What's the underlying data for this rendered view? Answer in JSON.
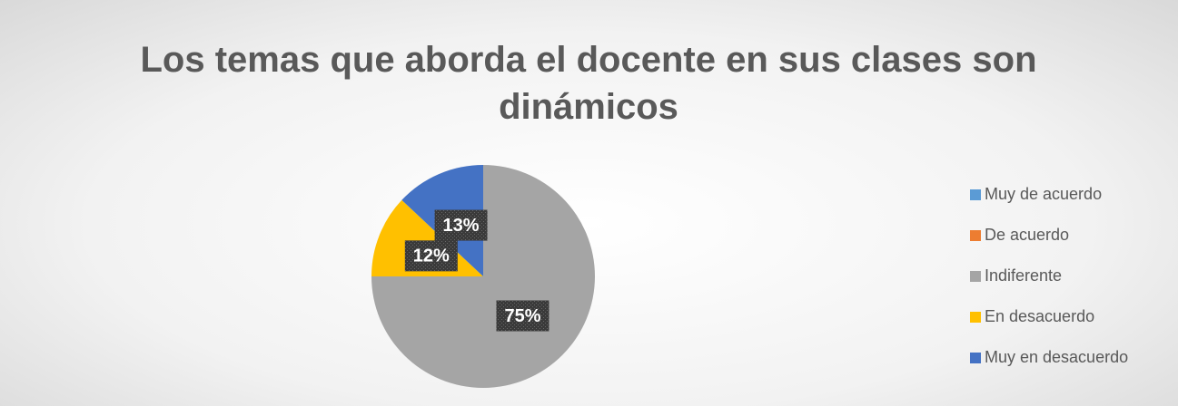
{
  "chart_data": {
    "type": "pie",
    "title": "Los temas que aborda el docente en sus clases son dinámicos",
    "categories": [
      "Muy de acuerdo",
      "De acuerdo",
      "Indiferente",
      "En desacuerdo",
      "Muy en desacuerdo"
    ],
    "values": [
      0,
      0,
      75,
      12,
      13
    ],
    "value_labels": [
      null,
      null,
      "75%",
      "12%",
      "13%"
    ],
    "colors": [
      "#5b9bd5",
      "#ed7d31",
      "#a5a5a5",
      "#ffc000",
      "#4472c4"
    ],
    "legend": "right"
  }
}
